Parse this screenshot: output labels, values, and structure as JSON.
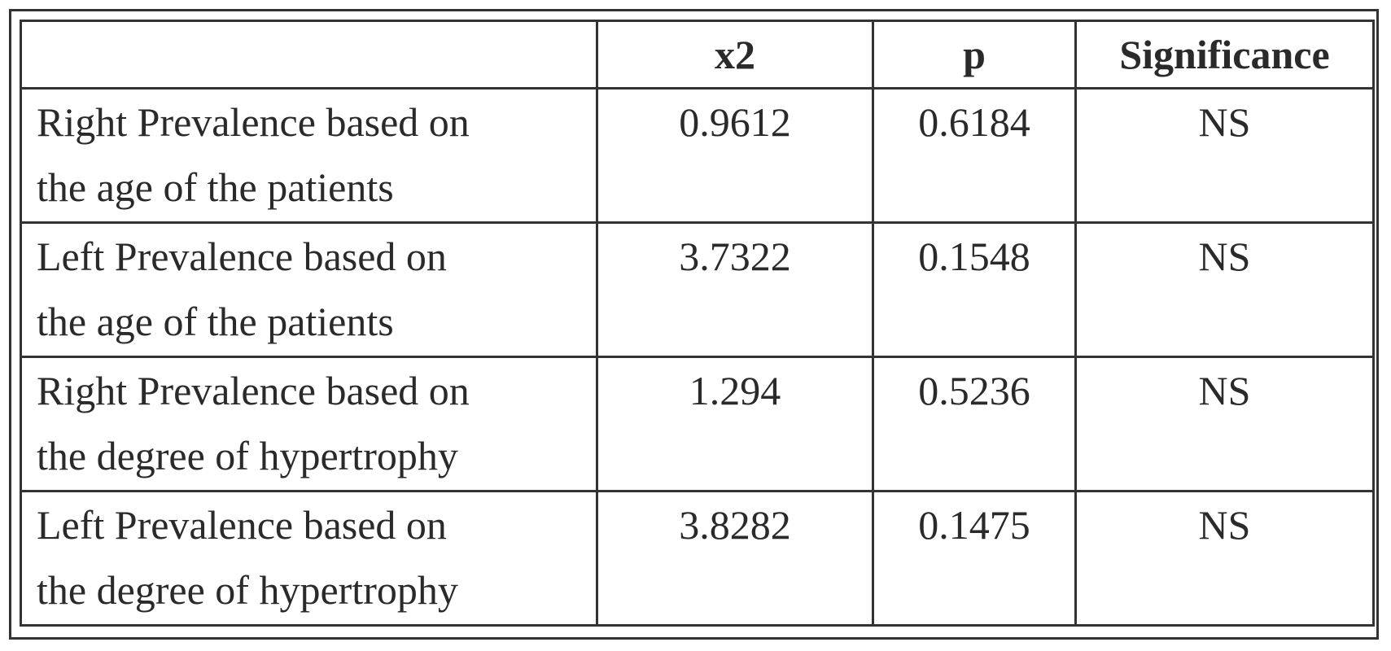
{
  "table": {
    "header": [
      "",
      "x2",
      "p",
      "Significance"
    ],
    "rows": [
      [
        [
          "Right Prevalence based on",
          "the age of the patients"
        ],
        "0.9612",
        "0.6184",
        "NS"
      ],
      [
        [
          "Left Prevalence based on",
          "the age of the patients"
        ],
        "3.7322",
        "0.1548",
        "NS"
      ],
      [
        [
          "Right Prevalence based on",
          "the degree of hypertrophy"
        ],
        "1.294",
        "0.5236",
        "NS"
      ],
      [
        [
          "Left Prevalence based on",
          "the degree of hypertrophy"
        ],
        "3.8282",
        "0.1475",
        "NS"
      ]
    ]
  }
}
